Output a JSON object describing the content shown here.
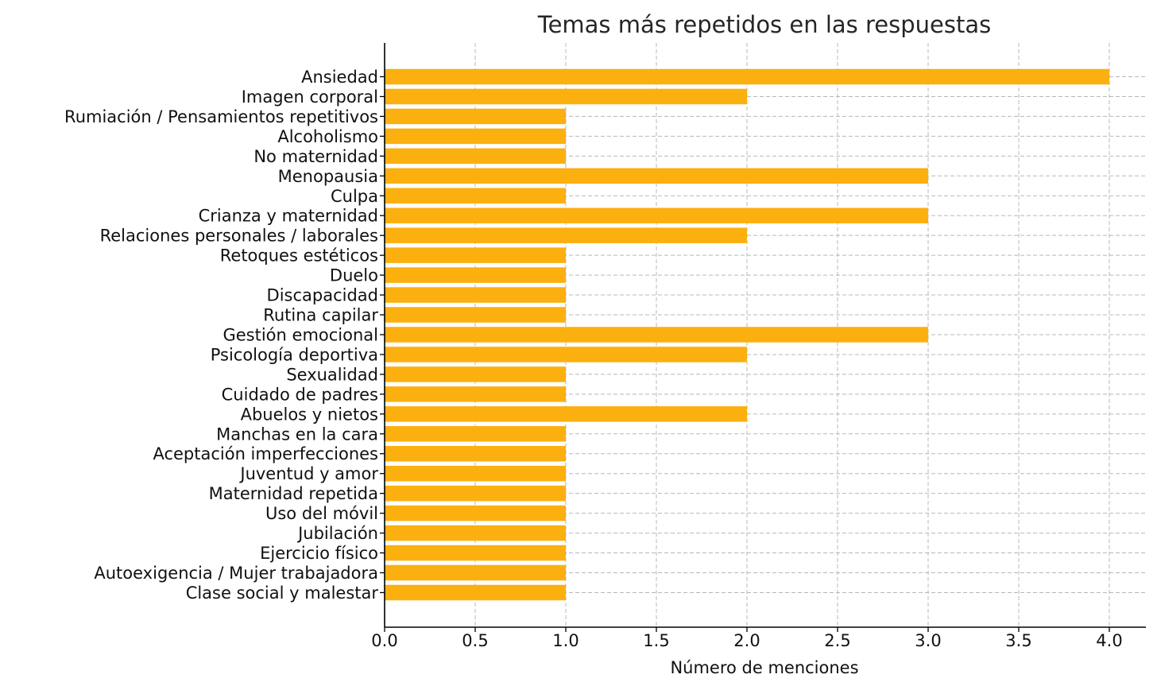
{
  "chart_data": {
    "type": "bar",
    "orientation": "horizontal",
    "title": "Temas más repetidos en las respuestas",
    "xlabel": "Número de menciones",
    "ylabel": "",
    "xlim": [
      0,
      4.2
    ],
    "xticks": [
      "0.0",
      "0.5",
      "1.0",
      "1.5",
      "2.0",
      "2.5",
      "3.0",
      "3.5",
      "4.0"
    ],
    "grid": true,
    "bar_color": "#FBB00F",
    "categories": [
      "Ansiedad",
      "Imagen corporal",
      "Rumiación / Pensamientos repetitivos",
      "Alcoholismo",
      "No maternidad",
      "Menopausia",
      "Culpa",
      "Crianza y maternidad",
      "Relaciones personales / laborales",
      "Retoques estéticos",
      "Duelo",
      "Discapacidad",
      "Rutina capilar",
      "Gestión emocional",
      "Psicología deportiva",
      "Sexualidad",
      "Cuidado de padres",
      "Abuelos y nietos",
      "Manchas en la cara",
      "Aceptación imperfecciones",
      "Juventud y amor",
      "Maternidad repetida",
      "Uso del móvil",
      "Jubilación",
      "Ejercicio físico",
      "Autoexigencia / Mujer trabajadora",
      "Clase social y malestar"
    ],
    "values": [
      4,
      2,
      1,
      1,
      1,
      3,
      1,
      3,
      2,
      1,
      1,
      1,
      1,
      3,
      2,
      1,
      1,
      2,
      1,
      1,
      1,
      1,
      1,
      1,
      1,
      1,
      1
    ]
  }
}
